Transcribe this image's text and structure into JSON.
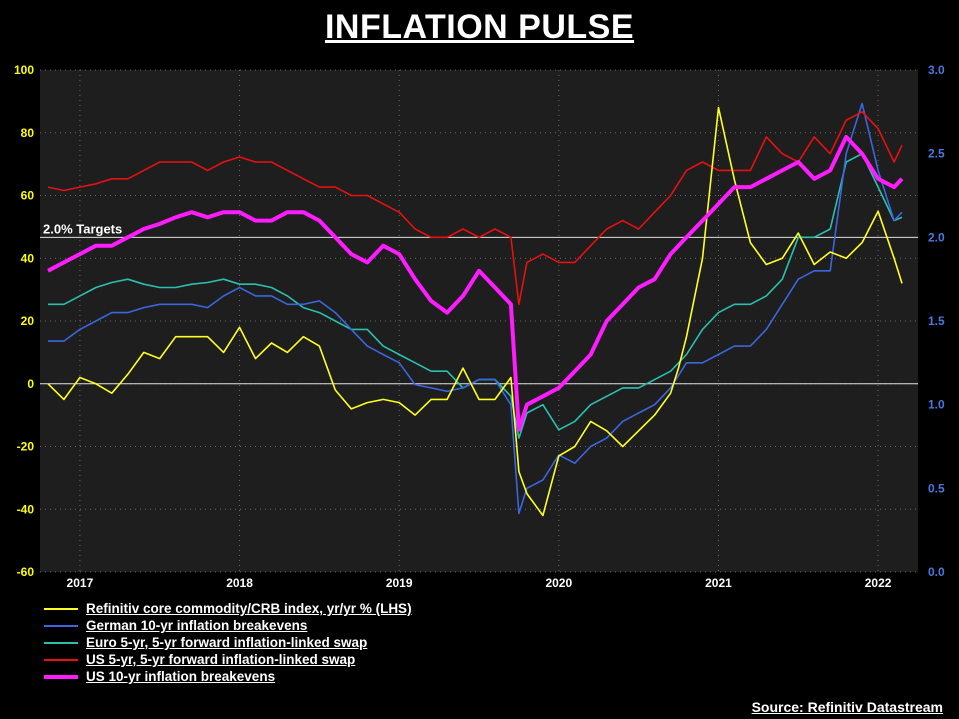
{
  "colors": {
    "background": "#000000",
    "plot_area": "#1e1e1e",
    "left_axis_labels": "#ffff00",
    "right_axis_labels": "#4a78e0",
    "series_commodity": "#ffff22",
    "series_german": "#3a66e0",
    "series_euro": "#2ac0b0",
    "series_us5y5y": "#e81010",
    "series_us10y": "#ff1dff"
  },
  "chart_data": {
    "type": "line",
    "title": "INFLATION PULSE",
    "source": "Source: Refinitiv Datastream",
    "x_tick_labels": [
      "2017",
      "2018",
      "2019",
      "2020",
      "2021",
      "2022"
    ],
    "x_ticks": [
      2017.0,
      2018.0,
      2019.0,
      2020.0,
      2021.0,
      2022.0
    ],
    "xlim": [
      2016.75,
      2022.25
    ],
    "left_axis": {
      "ylim": [
        -60,
        100
      ],
      "ticks": [
        "100",
        "80",
        "60",
        "40",
        "20",
        "0",
        "-20",
        "-40",
        "-60"
      ]
    },
    "right_axis": {
      "ylim": [
        0.0,
        3.0
      ],
      "ticks": [
        "3.0",
        "2.5",
        "2.0",
        "1.5",
        "1.0",
        "0.5",
        "0.0"
      ]
    },
    "grid": "dotted",
    "reference_lines": [
      {
        "axis": "left",
        "y": 0
      },
      {
        "axis": "right",
        "y": 2.0,
        "label": "2.0% Targets"
      }
    ],
    "legend_position": "bottom-left",
    "series": [
      {
        "name": "Refinitiv core commodity/CRB index, yr/yr % (LHS)",
        "axis": "left",
        "x": [
          2016.8,
          2016.9,
          2017.0,
          2017.1,
          2017.2,
          2017.3,
          2017.4,
          2017.5,
          2017.6,
          2017.7,
          2017.8,
          2017.9,
          2018.0,
          2018.1,
          2018.2,
          2018.3,
          2018.4,
          2018.5,
          2018.6,
          2018.7,
          2018.8,
          2018.9,
          2019.0,
          2019.1,
          2019.2,
          2019.3,
          2019.4,
          2019.5,
          2019.6,
          2019.7,
          2019.75,
          2019.8,
          2019.9,
          2020.0,
          2020.1,
          2020.2,
          2020.3,
          2020.4,
          2020.5,
          2020.6,
          2020.7,
          2020.75,
          2020.8,
          2020.9,
          2021.0,
          2021.1,
          2021.2,
          2021.3,
          2021.4,
          2021.5,
          2021.6,
          2021.7,
          2021.8,
          2021.9,
          2022.0,
          2022.1,
          2022.15
        ],
        "values": [
          0,
          -5,
          2,
          0,
          -3,
          3,
          10,
          8,
          15,
          15,
          15,
          10,
          18,
          8,
          13,
          10,
          15,
          12,
          -2,
          -8,
          -6,
          -5,
          -6,
          -10,
          -5,
          -5,
          5,
          -5,
          -5,
          2,
          -28,
          -35,
          -42,
          -23,
          -20,
          -12,
          -15,
          -20,
          -15,
          -10,
          -3,
          5,
          15,
          40,
          88,
          65,
          45,
          38,
          40,
          48,
          38,
          42,
          40,
          45,
          55,
          40,
          32
        ]
      },
      {
        "name": "German 10-yr inflation breakevens",
        "axis": "right",
        "x": [
          2016.8,
          2016.9,
          2017.0,
          2017.1,
          2017.2,
          2017.3,
          2017.4,
          2017.5,
          2017.6,
          2017.7,
          2017.8,
          2017.9,
          2018.0,
          2018.1,
          2018.2,
          2018.3,
          2018.4,
          2018.5,
          2018.6,
          2018.7,
          2018.8,
          2018.9,
          2019.0,
          2019.1,
          2019.2,
          2019.3,
          2019.4,
          2019.5,
          2019.6,
          2019.7,
          2019.75,
          2019.8,
          2019.9,
          2020.0,
          2020.1,
          2020.2,
          2020.3,
          2020.4,
          2020.5,
          2020.6,
          2020.7,
          2020.8,
          2020.9,
          2021.0,
          2021.1,
          2021.2,
          2021.3,
          2021.4,
          2021.5,
          2021.6,
          2021.7,
          2021.8,
          2021.9,
          2022.0,
          2022.1,
          2022.15
        ],
        "values": [
          1.38,
          1.38,
          1.45,
          1.5,
          1.55,
          1.55,
          1.58,
          1.6,
          1.6,
          1.6,
          1.58,
          1.65,
          1.7,
          1.65,
          1.65,
          1.6,
          1.6,
          1.62,
          1.55,
          1.45,
          1.35,
          1.3,
          1.25,
          1.12,
          1.1,
          1.08,
          1.1,
          1.15,
          1.15,
          1.0,
          0.35,
          0.5,
          0.55,
          0.7,
          0.65,
          0.75,
          0.8,
          0.9,
          0.95,
          1.0,
          1.1,
          1.25,
          1.25,
          1.3,
          1.35,
          1.35,
          1.45,
          1.6,
          1.75,
          1.8,
          1.8,
          2.5,
          2.8,
          2.4,
          2.1,
          2.15
        ]
      },
      {
        "name": "Euro 5-yr, 5-yr forward inflation-linked swap",
        "axis": "right",
        "x": [
          2016.8,
          2016.9,
          2017.0,
          2017.1,
          2017.2,
          2017.3,
          2017.4,
          2017.5,
          2017.6,
          2017.7,
          2017.8,
          2017.9,
          2018.0,
          2018.1,
          2018.2,
          2018.3,
          2018.4,
          2018.5,
          2018.6,
          2018.7,
          2018.8,
          2018.9,
          2019.0,
          2019.1,
          2019.2,
          2019.3,
          2019.4,
          2019.5,
          2019.6,
          2019.7,
          2019.75,
          2019.8,
          2019.9,
          2020.0,
          2020.1,
          2020.2,
          2020.3,
          2020.4,
          2020.5,
          2020.6,
          2020.7,
          2020.8,
          2020.9,
          2021.0,
          2021.1,
          2021.2,
          2021.3,
          2021.4,
          2021.5,
          2021.6,
          2021.7,
          2021.8,
          2021.9,
          2022.0,
          2022.1,
          2022.15
        ],
        "values": [
          1.6,
          1.6,
          1.65,
          1.7,
          1.73,
          1.75,
          1.72,
          1.7,
          1.7,
          1.72,
          1.73,
          1.75,
          1.72,
          1.72,
          1.7,
          1.65,
          1.58,
          1.55,
          1.5,
          1.45,
          1.45,
          1.35,
          1.3,
          1.25,
          1.2,
          1.2,
          1.1,
          1.15,
          1.15,
          1.05,
          0.8,
          0.95,
          1.0,
          0.85,
          0.9,
          1.0,
          1.05,
          1.1,
          1.1,
          1.15,
          1.2,
          1.3,
          1.45,
          1.55,
          1.6,
          1.6,
          1.65,
          1.75,
          2.0,
          2.0,
          2.05,
          2.45,
          2.5,
          2.3,
          2.1,
          2.12
        ]
      },
      {
        "name": "US 5-yr, 5-yr forward inflation-linked swap",
        "axis": "right",
        "x": [
          2016.8,
          2016.9,
          2017.0,
          2017.1,
          2017.2,
          2017.3,
          2017.4,
          2017.5,
          2017.6,
          2017.7,
          2017.8,
          2017.9,
          2018.0,
          2018.1,
          2018.2,
          2018.3,
          2018.4,
          2018.5,
          2018.6,
          2018.7,
          2018.8,
          2018.9,
          2019.0,
          2019.1,
          2019.2,
          2019.3,
          2019.4,
          2019.5,
          2019.6,
          2019.7,
          2019.75,
          2019.8,
          2019.9,
          2020.0,
          2020.1,
          2020.2,
          2020.3,
          2020.4,
          2020.5,
          2020.6,
          2020.7,
          2020.8,
          2020.9,
          2021.0,
          2021.1,
          2021.2,
          2021.3,
          2021.4,
          2021.5,
          2021.6,
          2021.7,
          2021.8,
          2021.9,
          2022.0,
          2022.1,
          2022.15
        ],
        "values": [
          2.3,
          2.28,
          2.3,
          2.32,
          2.35,
          2.35,
          2.4,
          2.45,
          2.45,
          2.45,
          2.4,
          2.45,
          2.48,
          2.45,
          2.45,
          2.4,
          2.35,
          2.3,
          2.3,
          2.25,
          2.25,
          2.2,
          2.15,
          2.05,
          2.0,
          2.0,
          2.05,
          2.0,
          2.05,
          2.0,
          1.6,
          1.85,
          1.9,
          1.85,
          1.85,
          1.95,
          2.05,
          2.1,
          2.05,
          2.15,
          2.25,
          2.4,
          2.45,
          2.4,
          2.4,
          2.4,
          2.6,
          2.5,
          2.45,
          2.6,
          2.5,
          2.7,
          2.75,
          2.65,
          2.45,
          2.55
        ]
      },
      {
        "name": "US 10-yr inflation breakevens",
        "axis": "right",
        "x": [
          2016.8,
          2016.9,
          2017.0,
          2017.1,
          2017.2,
          2017.3,
          2017.4,
          2017.5,
          2017.6,
          2017.7,
          2017.8,
          2017.9,
          2018.0,
          2018.1,
          2018.2,
          2018.3,
          2018.4,
          2018.5,
          2018.6,
          2018.7,
          2018.8,
          2018.9,
          2019.0,
          2019.1,
          2019.2,
          2019.3,
          2019.4,
          2019.5,
          2019.6,
          2019.7,
          2019.75,
          2019.8,
          2019.9,
          2020.0,
          2020.1,
          2020.2,
          2020.3,
          2020.4,
          2020.5,
          2020.6,
          2020.7,
          2020.8,
          2020.9,
          2021.0,
          2021.1,
          2021.2,
          2021.3,
          2021.4,
          2021.5,
          2021.6,
          2021.7,
          2021.8,
          2021.9,
          2022.0,
          2022.1,
          2022.15
        ],
        "values": [
          1.8,
          1.85,
          1.9,
          1.95,
          1.95,
          2.0,
          2.05,
          2.08,
          2.12,
          2.15,
          2.12,
          2.15,
          2.15,
          2.1,
          2.1,
          2.15,
          2.15,
          2.1,
          2.0,
          1.9,
          1.85,
          1.95,
          1.9,
          1.75,
          1.62,
          1.55,
          1.65,
          1.8,
          1.7,
          1.6,
          0.85,
          1.0,
          1.05,
          1.1,
          1.2,
          1.3,
          1.5,
          1.6,
          1.7,
          1.75,
          1.9,
          2.0,
          2.1,
          2.2,
          2.3,
          2.3,
          2.35,
          2.4,
          2.45,
          2.35,
          2.4,
          2.6,
          2.5,
          2.35,
          2.3,
          2.35
        ]
      }
    ]
  }
}
